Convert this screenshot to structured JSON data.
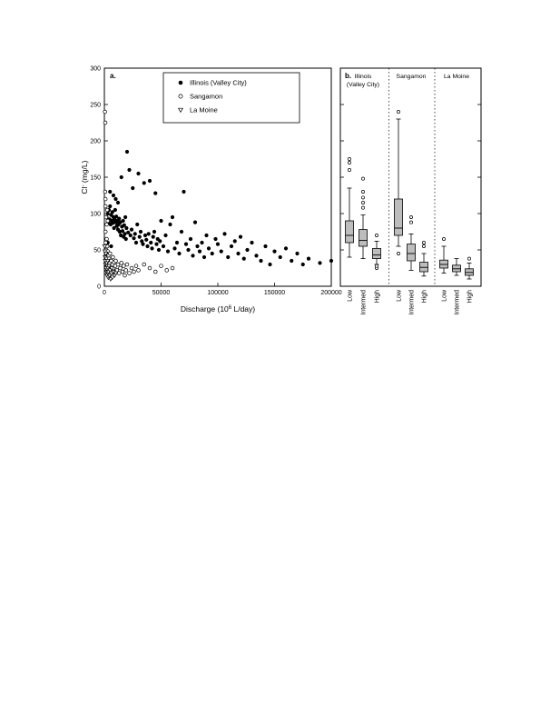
{
  "figure": {
    "panel_a_label": "a.",
    "panel_b_label": "b.",
    "y_axis_label_parts": [
      "Cl",
      "-",
      " (mg/L)"
    ],
    "x_axis_label_parts": [
      "Discharge (10",
      "6",
      " L/day)"
    ],
    "legend": [
      {
        "marker": "filled-circle",
        "label": "Illinois (Valley City)"
      },
      {
        "marker": "open-circle",
        "label": "Sangamon"
      },
      {
        "marker": "open-triangle",
        "label": "La Moine"
      }
    ],
    "colors": {
      "box_fill": "#bdbdbd",
      "marker_black": "#000000",
      "background": "#ffffff"
    }
  },
  "chart_data": [
    {
      "type": "scatter",
      "panel": "a",
      "title": "",
      "xlabel": "Discharge (10^6 L/day)",
      "ylabel": "Cl- (mg/L)",
      "xlim": [
        0,
        200000
      ],
      "ylim": [
        0,
        300
      ],
      "x_ticks": [
        0,
        50000,
        100000,
        150000,
        200000
      ],
      "y_ticks": [
        0,
        50,
        100,
        150,
        200,
        250,
        300
      ],
      "grid": false,
      "legend_position": "upper center inside",
      "series": [
        {
          "name": "Illinois (Valley City)",
          "marker": "filled-circle",
          "points": [
            [
              2000,
              95
            ],
            [
              2500,
              45
            ],
            [
              3000,
              100
            ],
            [
              3000,
              60
            ],
            [
              3500,
              88
            ],
            [
              4000,
              105
            ],
            [
              4000,
              35
            ],
            [
              4500,
              92
            ],
            [
              5000,
              110
            ],
            [
              5000,
              130
            ],
            [
              5500,
              85
            ],
            [
              6000,
              98
            ],
            [
              6000,
              55
            ],
            [
              6500,
              90
            ],
            [
              7000,
              102
            ],
            [
              7500,
              87
            ],
            [
              8000,
              95
            ],
            [
              8000,
              125
            ],
            [
              8500,
              80
            ],
            [
              9000,
              92
            ],
            [
              9500,
              105
            ],
            [
              10000,
              88
            ],
            [
              10000,
              120
            ],
            [
              10500,
              96
            ],
            [
              11000,
              83
            ],
            [
              11500,
              90
            ],
            [
              12000,
              78
            ],
            [
              12000,
              115
            ],
            [
              12500,
              85
            ],
            [
              13000,
              93
            ],
            [
              13500,
              75
            ],
            [
              14000,
              88
            ],
            [
              14500,
              70
            ],
            [
              15000,
              150
            ],
            [
              15500,
              82
            ],
            [
              16000,
              76
            ],
            [
              16500,
              90
            ],
            [
              17000,
              68
            ],
            [
              17500,
              84
            ],
            [
              18000,
              72
            ],
            [
              18500,
              95
            ],
            [
              19000,
              65
            ],
            [
              19500,
              80
            ],
            [
              20000,
              185
            ],
            [
              21000,
              74
            ],
            [
              22000,
              160
            ],
            [
              23000,
              70
            ],
            [
              24000,
              78
            ],
            [
              25000,
              135
            ],
            [
              26000,
              66
            ],
            [
              27000,
              72
            ],
            [
              28000,
              60
            ],
            [
              29000,
              85
            ],
            [
              30000,
              155
            ],
            [
              31000,
              68
            ],
            [
              32000,
              75
            ],
            [
              33000,
              62
            ],
            [
              34000,
              58
            ],
            [
              35000,
              142
            ],
            [
              36000,
              70
            ],
            [
              37000,
              64
            ],
            [
              38000,
              55
            ],
            [
              39000,
              72
            ],
            [
              40000,
              145
            ],
            [
              41000,
              60
            ],
            [
              42000,
              52
            ],
            [
              43000,
              68
            ],
            [
              44000,
              75
            ],
            [
              45000,
              128
            ],
            [
              46000,
              58
            ],
            [
              47000,
              65
            ],
            [
              48000,
              50
            ],
            [
              49000,
              62
            ],
            [
              50000,
              90
            ],
            [
              52000,
              55
            ],
            [
              54000,
              70
            ],
            [
              56000,
              48
            ],
            [
              58000,
              85
            ],
            [
              60000,
              95
            ],
            [
              62000,
              52
            ],
            [
              64000,
              60
            ],
            [
              66000,
              45
            ],
            [
              68000,
              75
            ],
            [
              70000,
              130
            ],
            [
              72000,
              58
            ],
            [
              74000,
              50
            ],
            [
              76000,
              65
            ],
            [
              78000,
              42
            ],
            [
              80000,
              88
            ],
            [
              82000,
              55
            ],
            [
              84000,
              48
            ],
            [
              86000,
              60
            ],
            [
              88000,
              40
            ],
            [
              90000,
              70
            ],
            [
              92000,
              52
            ],
            [
              95000,
              45
            ],
            [
              98000,
              65
            ],
            [
              100000,
              58
            ],
            [
              103000,
              48
            ],
            [
              106000,
              72
            ],
            [
              109000,
              40
            ],
            [
              112000,
              55
            ],
            [
              115000,
              62
            ],
            [
              118000,
              45
            ],
            [
              120000,
              68
            ],
            [
              123000,
              38
            ],
            [
              126000,
              50
            ],
            [
              130000,
              60
            ],
            [
              134000,
              42
            ],
            [
              138000,
              35
            ],
            [
              142000,
              55
            ],
            [
              146000,
              30
            ],
            [
              150000,
              48
            ],
            [
              155000,
              40
            ],
            [
              160000,
              52
            ],
            [
              165000,
              35
            ],
            [
              170000,
              45
            ],
            [
              175000,
              30
            ],
            [
              180000,
              38
            ],
            [
              190000,
              32
            ],
            [
              200000,
              35
            ]
          ]
        },
        {
          "name": "Sangamon",
          "marker": "open-circle",
          "points": [
            [
              500,
              240
            ],
            [
              800,
              225
            ],
            [
              700,
              130
            ],
            [
              900,
              120
            ],
            [
              1000,
              110
            ],
            [
              1000,
              75
            ],
            [
              1200,
              60
            ],
            [
              1500,
              95
            ],
            [
              1500,
              50
            ],
            [
              1800,
              45
            ],
            [
              2000,
              85
            ],
            [
              2000,
              65
            ],
            [
              2200,
              40
            ],
            [
              2500,
              105
            ],
            [
              2500,
              55
            ],
            [
              2800,
              35
            ],
            [
              3000,
              90
            ],
            [
              3000,
              48
            ],
            [
              3200,
              30
            ],
            [
              3500,
              42
            ],
            [
              3800,
              25
            ],
            [
              4000,
              38
            ],
            [
              4500,
              32
            ],
            [
              5000,
              45
            ],
            [
              5500,
              28
            ],
            [
              6000,
              35
            ],
            [
              6500,
              22
            ],
            [
              7000,
              30
            ],
            [
              7500,
              40
            ],
            [
              8000,
              25
            ],
            [
              8500,
              33
            ],
            [
              9000,
              20
            ],
            [
              9500,
              28
            ],
            [
              10000,
              35
            ],
            [
              11000,
              22
            ],
            [
              12000,
              30
            ],
            [
              13000,
              18
            ],
            [
              14000,
              25
            ],
            [
              15000,
              32
            ],
            [
              16000,
              20
            ],
            [
              17000,
              28
            ],
            [
              18000,
              15
            ],
            [
              19000,
              22
            ],
            [
              20000,
              30
            ],
            [
              22000,
              18
            ],
            [
              24000,
              25
            ],
            [
              26000,
              20
            ],
            [
              28000,
              28
            ],
            [
              30000,
              22
            ],
            [
              35000,
              30
            ],
            [
              40000,
              25
            ],
            [
              45000,
              20
            ],
            [
              50000,
              28
            ],
            [
              55000,
              22
            ],
            [
              60000,
              25
            ]
          ]
        },
        {
          "name": "La Moine",
          "marker": "open-triangle",
          "points": [
            [
              300,
              55
            ],
            [
              500,
              48
            ],
            [
              700,
              40
            ],
            [
              900,
              35
            ],
            [
              1100,
              30
            ],
            [
              1300,
              45
            ],
            [
              1500,
              25
            ],
            [
              1700,
              38
            ],
            [
              1900,
              20
            ],
            [
              2100,
              32
            ],
            [
              2300,
              15
            ],
            [
              2500,
              28
            ],
            [
              2700,
              22
            ],
            [
              2900,
              35
            ],
            [
              3100,
              18
            ],
            [
              3300,
              25
            ],
            [
              3500,
              12
            ],
            [
              3700,
              20
            ],
            [
              4000,
              28
            ],
            [
              4500,
              15
            ],
            [
              5000,
              22
            ],
            [
              5500,
              10
            ],
            [
              6000,
              18
            ],
            [
              6500,
              25
            ],
            [
              7000,
              12
            ],
            [
              8000,
              20
            ],
            [
              9000,
              15
            ],
            [
              10000,
              18
            ]
          ]
        }
      ]
    },
    {
      "type": "box",
      "panel": "b",
      "title": "",
      "ylabel": "Cl- (mg/L)",
      "ylim": [
        0,
        300
      ],
      "y_ticks": [
        0,
        50,
        100,
        150,
        200,
        250,
        300
      ],
      "box_fill": "#bdbdbd",
      "groups": [
        {
          "name": "Illinois (Valley City)",
          "name_lines": [
            "Illinois",
            "(Valley City)"
          ],
          "boxes": [
            {
              "category": "Low",
              "low": 40,
              "q1": 60,
              "median": 70,
              "q3": 90,
              "high": 135,
              "outliers": [
                160,
                170,
                175
              ]
            },
            {
              "category": "Intermed",
              "low": 38,
              "q1": 55,
              "median": 63,
              "q3": 78,
              "high": 98,
              "outliers": [
                108,
                115,
                122,
                130,
                148
              ]
            },
            {
              "category": "High",
              "low": 30,
              "q1": 38,
              "median": 43,
              "q3": 52,
              "high": 62,
              "outliers": [
                25,
                28,
                70
              ]
            }
          ]
        },
        {
          "name": "Sangamon",
          "name_lines": [
            "Sangamon"
          ],
          "boxes": [
            {
              "category": "Low",
              "low": 55,
              "q1": 70,
              "median": 80,
              "q3": 120,
              "high": 230,
              "outliers": [
                240,
                45
              ]
            },
            {
              "category": "Intermed",
              "low": 22,
              "q1": 35,
              "median": 45,
              "q3": 58,
              "high": 72,
              "outliers": [
                88,
                95
              ]
            },
            {
              "category": "High",
              "low": 14,
              "q1": 20,
              "median": 26,
              "q3": 33,
              "high": 45,
              "outliers": [
                55,
                60
              ]
            }
          ]
        },
        {
          "name": "La Moine",
          "name_lines": [
            "La Moine"
          ],
          "boxes": [
            {
              "category": "Low",
              "low": 18,
              "q1": 25,
              "median": 30,
              "q3": 36,
              "high": 55,
              "outliers": [
                65
              ]
            },
            {
              "category": "Intermed",
              "low": 15,
              "q1": 20,
              "median": 24,
              "q3": 29,
              "high": 38,
              "outliers": []
            },
            {
              "category": "High",
              "low": 10,
              "q1": 15,
              "median": 19,
              "q3": 24,
              "high": 32,
              "outliers": [
                38
              ]
            }
          ]
        }
      ]
    }
  ]
}
